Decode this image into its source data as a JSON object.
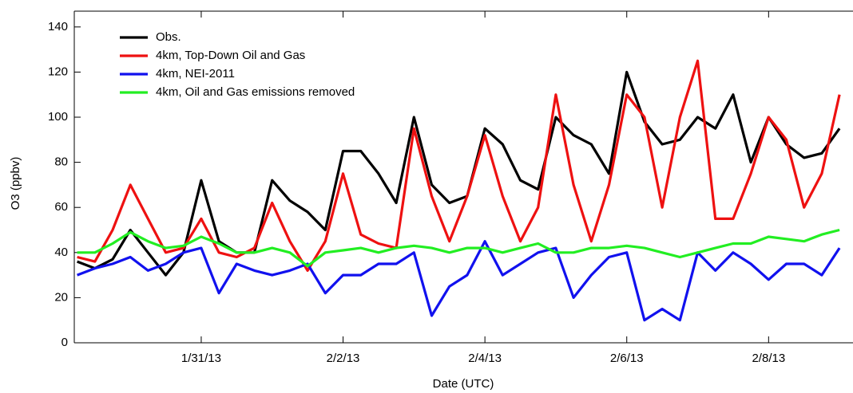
{
  "chart_data": {
    "type": "line",
    "x_label": "Date (UTC)",
    "y_label": "O3 (ppbv)",
    "x": [
      -1.75,
      -1.5,
      -1.25,
      -1.0,
      -0.75,
      -0.5,
      -0.25,
      0,
      0.25,
      0.5,
      0.75,
      1.0,
      1.25,
      1.5,
      1.75,
      2.0,
      2.25,
      2.5,
      2.75,
      3.0,
      3.25,
      3.5,
      3.75,
      4.0,
      4.25,
      4.5,
      4.75,
      5.0,
      5.25,
      5.5,
      5.75,
      6.0,
      6.25,
      6.5,
      6.75,
      7.0,
      7.25,
      7.5,
      7.75,
      8.0,
      8.25,
      8.5,
      8.75,
      9.0
    ],
    "series": [
      {
        "name": "Obs.",
        "color": "#000000",
        "values": [
          36,
          33,
          37,
          50,
          40,
          30,
          40,
          72,
          45,
          40,
          40,
          72,
          63,
          58,
          50,
          85,
          85,
          75,
          62,
          100,
          70,
          62,
          65,
          95,
          88,
          72,
          68,
          100,
          92,
          88,
          75,
          120,
          98,
          88,
          90,
          100,
          95,
          110,
          80,
          100,
          88,
          82,
          84,
          95
        ]
      },
      {
        "name": "4km, Top-Down Oil and Gas",
        "color": "#ee1111",
        "values": [
          38,
          36,
          50,
          70,
          55,
          40,
          42,
          55,
          40,
          38,
          42,
          62,
          45,
          32,
          45,
          75,
          48,
          44,
          42,
          95,
          65,
          45,
          65,
          92,
          65,
          45,
          60,
          110,
          70,
          45,
          70,
          110,
          100,
          60,
          100,
          125,
          55,
          55,
          75,
          100,
          90,
          60,
          75,
          110
        ]
      },
      {
        "name": "4km, NEI-2011",
        "color": "#1111ee",
        "values": [
          30,
          33,
          35,
          38,
          32,
          35,
          40,
          42,
          22,
          35,
          32,
          30,
          32,
          35,
          22,
          30,
          30,
          35,
          35,
          40,
          12,
          25,
          30,
          45,
          30,
          35,
          40,
          42,
          20,
          30,
          38,
          40,
          10,
          15,
          10,
          40,
          32,
          40,
          35,
          28,
          35,
          35,
          30,
          42
        ]
      },
      {
        "name": "4km, Oil and Gas emissions removed",
        "color": "#22ee22",
        "values": [
          40,
          40,
          44,
          49,
          45,
          42,
          43,
          47,
          44,
          40,
          40,
          42,
          40,
          34,
          40,
          41,
          42,
          40,
          42,
          43,
          42,
          40,
          42,
          42,
          40,
          42,
          44,
          40,
          40,
          42,
          42,
          43,
          42,
          40,
          38,
          40,
          42,
          44,
          44,
          47,
          46,
          45,
          48,
          50
        ]
      }
    ],
    "xlim": [
      -1.79,
      9.19
    ],
    "xticks": [
      {
        "value": 0,
        "label": "1/31/13"
      },
      {
        "value": 2,
        "label": "2/2/13"
      },
      {
        "value": 4,
        "label": "2/4/13"
      },
      {
        "value": 6,
        "label": "2/6/13"
      },
      {
        "value": 8,
        "label": "2/8/13"
      }
    ],
    "ylim": [
      0,
      147
    ],
    "yticks": [
      0,
      20,
      40,
      60,
      80,
      100,
      120,
      140
    ],
    "legend": "upper left"
  }
}
